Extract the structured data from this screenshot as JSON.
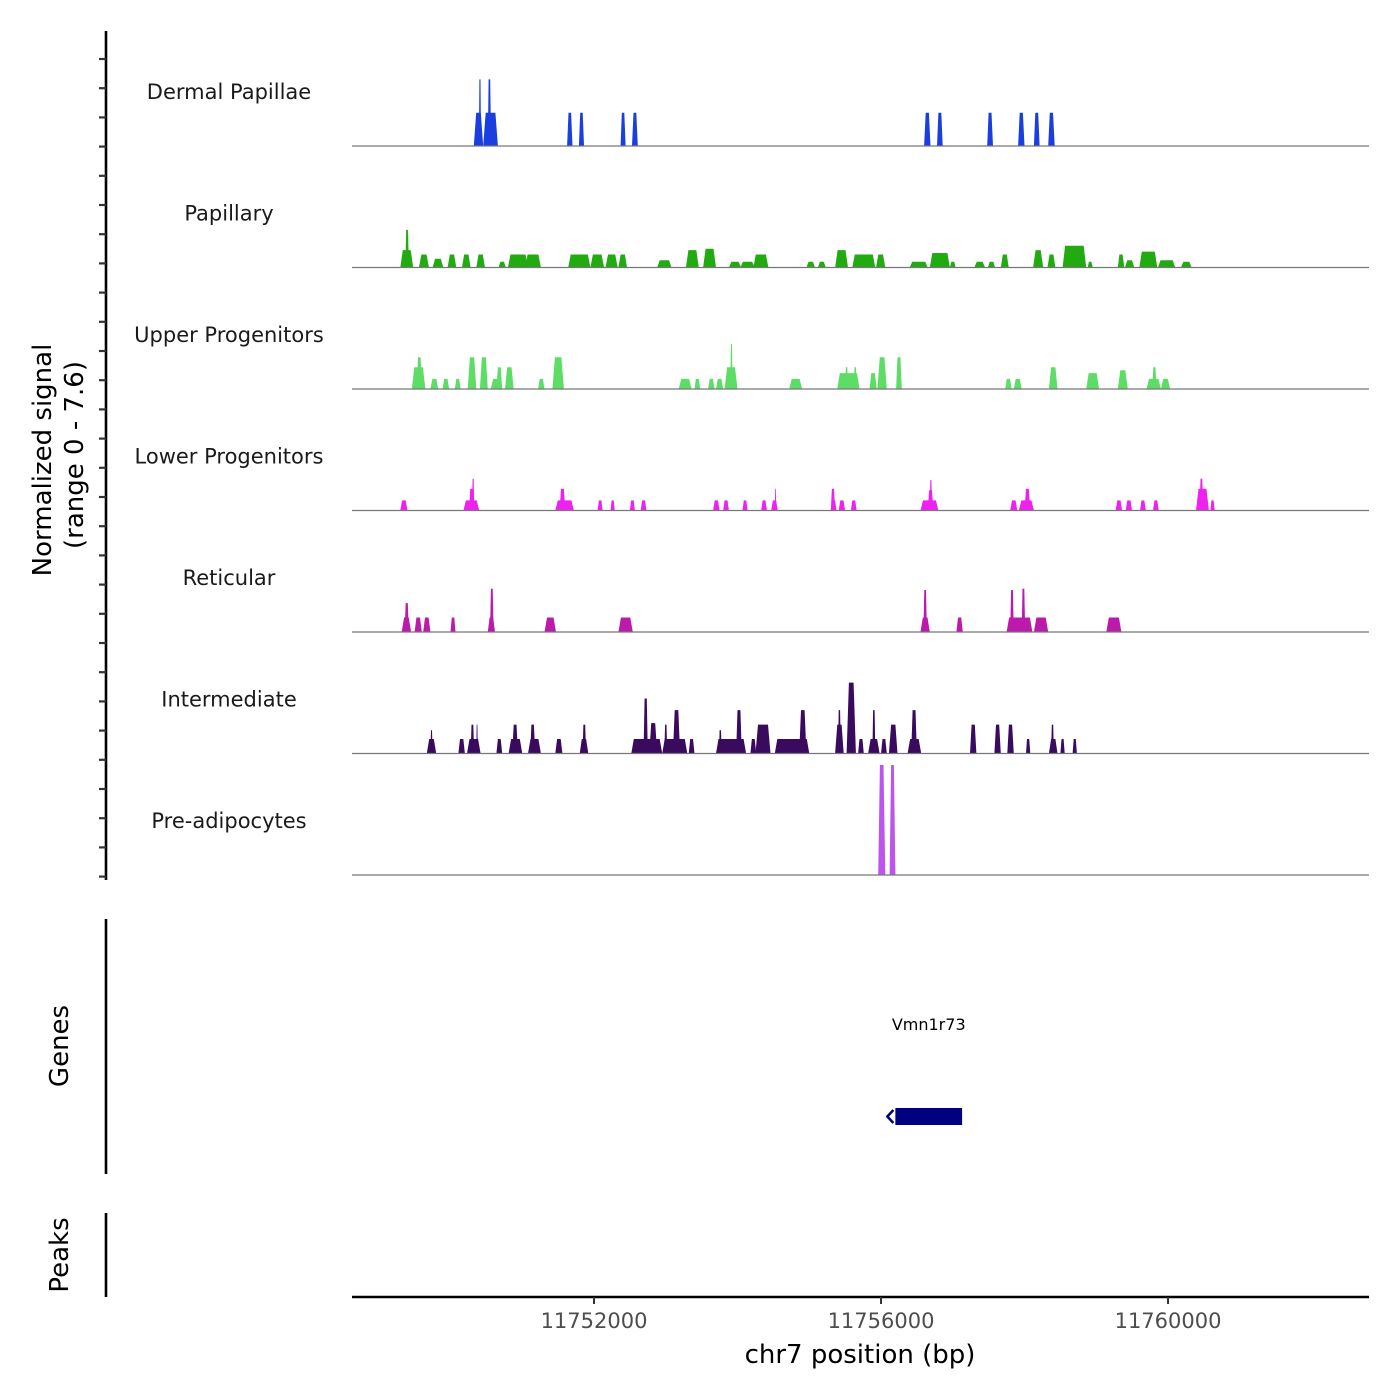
{
  "chart_data": {
    "type": "area",
    "title": "",
    "ylabel": "Normalized signal\n(range 0 - 7.6)",
    "ylabel_lines": [
      "Normalized signal",
      "(range 0 - 7.6)"
    ],
    "ylim": [
      0,
      7.6
    ],
    "xlabel": "chr7 position (bp)",
    "xlim": [
      11748627,
      11762801
    ],
    "x_ticks": [
      11752000,
      11756000,
      11760000
    ],
    "x_tick_labels": [
      "11752000",
      "11756000",
      "11760000"
    ],
    "grid": false,
    "tracks": [
      {
        "name": "Dermal Papillae",
        "color": "#1a3ee0",
        "segments": [
          [
            11750325,
            11750455,
            2.3
          ],
          [
            11750395,
            11750425,
            4.6
          ],
          [
            11750520,
            11750565,
            4.6
          ],
          [
            11750455,
            11750660,
            2.3
          ],
          [
            11751625,
            11751700,
            2.3
          ],
          [
            11751790,
            11751860,
            2.3
          ],
          [
            11752370,
            11752440,
            2.3
          ],
          [
            11752530,
            11752610,
            2.3
          ],
          [
            11756600,
            11756690,
            2.3
          ],
          [
            11756780,
            11756860,
            2.3
          ],
          [
            11757480,
            11757560,
            2.3
          ],
          [
            11757910,
            11758000,
            2.3
          ],
          [
            11758130,
            11758210,
            2.3
          ],
          [
            11758330,
            11758420,
            2.3
          ]
        ]
      },
      {
        "name": "Papillary",
        "color": "#22aa11",
        "segments": [
          [
            11749300,
            11749480,
            1.2
          ],
          [
            11749370,
            11749420,
            2.6
          ],
          [
            11749560,
            11749700,
            0.9
          ],
          [
            11749750,
            11749900,
            0.6
          ],
          [
            11749960,
            11750080,
            0.9
          ],
          [
            11750160,
            11750280,
            0.9
          ],
          [
            11750360,
            11750480,
            0.9
          ],
          [
            11750670,
            11750770,
            0.4
          ],
          [
            11750800,
            11751080,
            0.9
          ],
          [
            11751040,
            11751260,
            0.9
          ],
          [
            11751640,
            11751950,
            0.9
          ],
          [
            11751950,
            11752140,
            0.9
          ],
          [
            11752160,
            11752330,
            0.9
          ],
          [
            11752340,
            11752460,
            0.9
          ],
          [
            11752880,
            11753080,
            0.5
          ],
          [
            11753280,
            11753460,
            1.2
          ],
          [
            11753520,
            11753700,
            1.3
          ],
          [
            11753880,
            11754050,
            0.4
          ],
          [
            11754040,
            11754240,
            0.4
          ],
          [
            11754220,
            11754430,
            0.9
          ],
          [
            11754960,
            11755080,
            0.4
          ],
          [
            11755120,
            11755230,
            0.4
          ],
          [
            11755360,
            11755540,
            1.2
          ],
          [
            11755600,
            11755920,
            0.9
          ],
          [
            11755930,
            11756060,
            0.9
          ],
          [
            11756400,
            11756650,
            0.4
          ],
          [
            11756680,
            11756960,
            1.0
          ],
          [
            11756960,
            11757040,
            0.4
          ],
          [
            11757300,
            11757450,
            0.4
          ],
          [
            11757490,
            11757590,
            0.4
          ],
          [
            11757670,
            11757780,
            0.9
          ],
          [
            11758120,
            11758260,
            1.2
          ],
          [
            11758320,
            11758430,
            0.9
          ],
          [
            11758530,
            11758860,
            1.5
          ],
          [
            11758880,
            11758950,
            0.4
          ],
          [
            11759300,
            11759390,
            0.9
          ],
          [
            11759400,
            11759530,
            0.5
          ],
          [
            11759600,
            11759850,
            1.1
          ],
          [
            11759860,
            11760100,
            0.5
          ],
          [
            11760180,
            11760330,
            0.4
          ]
        ]
      },
      {
        "name": "Upper Progenitors",
        "color": "#5ddd66",
        "segments": [
          [
            11749460,
            11749650,
            1.5
          ],
          [
            11749530,
            11749600,
            2.2
          ],
          [
            11749720,
            11749830,
            0.7
          ],
          [
            11749890,
            11749980,
            0.7
          ],
          [
            11750060,
            11750140,
            0.7
          ],
          [
            11750240,
            11750360,
            2.2
          ],
          [
            11750410,
            11750520,
            2.2
          ],
          [
            11750560,
            11750700,
            0.7
          ],
          [
            11750640,
            11750720,
            1.5
          ],
          [
            11750760,
            11750880,
            1.5
          ],
          [
            11751220,
            11751310,
            0.7
          ],
          [
            11751420,
            11751580,
            2.2
          ],
          [
            11753180,
            11753360,
            0.7
          ],
          [
            11753400,
            11753480,
            0.7
          ],
          [
            11753590,
            11753680,
            0.7
          ],
          [
            11753700,
            11753800,
            0.7
          ],
          [
            11753820,
            11754000,
            1.5
          ],
          [
            11753900,
            11753930,
            3.1
          ],
          [
            11754720,
            11754900,
            0.7
          ],
          [
            11755390,
            11755700,
            1.1
          ],
          [
            11755500,
            11755540,
            1.5
          ],
          [
            11755620,
            11755660,
            1.5
          ],
          [
            11755840,
            11755940,
            1.1
          ],
          [
            11755950,
            11756080,
            2.2
          ],
          [
            11756210,
            11756290,
            2.2
          ],
          [
            11757730,
            11757820,
            0.7
          ],
          [
            11757850,
            11757960,
            0.7
          ],
          [
            11758340,
            11758460,
            1.5
          ],
          [
            11758860,
            11759040,
            1.1
          ],
          [
            11759300,
            11759440,
            1.3
          ],
          [
            11759700,
            11759900,
            0.7
          ],
          [
            11759780,
            11759840,
            1.5
          ],
          [
            11759900,
            11760030,
            0.7
          ]
        ]
      },
      {
        "name": "Lower Progenitors",
        "color": "#ee22ee",
        "segments": [
          [
            11749300,
            11749400,
            0.7
          ],
          [
            11750180,
            11750400,
            0.7
          ],
          [
            11750260,
            11750320,
            1.5
          ],
          [
            11750300,
            11750330,
            2.2
          ],
          [
            11751460,
            11751720,
            0.7
          ],
          [
            11751520,
            11751600,
            1.5
          ],
          [
            11752050,
            11752120,
            0.7
          ],
          [
            11752230,
            11752290,
            0.7
          ],
          [
            11752500,
            11752570,
            0.7
          ],
          [
            11752650,
            11752730,
            0.7
          ],
          [
            11753660,
            11753750,
            0.7
          ],
          [
            11753800,
            11753880,
            0.7
          ],
          [
            11754070,
            11754140,
            0.7
          ],
          [
            11754330,
            11754410,
            0.7
          ],
          [
            11754470,
            11754560,
            0.7
          ],
          [
            11754520,
            11754540,
            1.5
          ],
          [
            11755300,
            11755380,
            0.7
          ],
          [
            11755300,
            11755360,
            1.5
          ],
          [
            11755410,
            11755500,
            0.7
          ],
          [
            11755580,
            11755660,
            0.7
          ],
          [
            11756550,
            11756800,
            0.7
          ],
          [
            11756650,
            11756730,
            1.4
          ],
          [
            11756680,
            11756710,
            2.1
          ],
          [
            11757800,
            11757900,
            0.7
          ],
          [
            11757920,
            11758130,
            0.7
          ],
          [
            11758000,
            11758080,
            1.5
          ],
          [
            11759270,
            11759360,
            0.7
          ],
          [
            11759410,
            11759500,
            0.7
          ],
          [
            11759610,
            11759690,
            0.7
          ],
          [
            11759790,
            11759870,
            0.7
          ],
          [
            11760390,
            11760570,
            1.5
          ],
          [
            11760440,
            11760490,
            2.2
          ],
          [
            11760590,
            11760650,
            0.7
          ]
        ]
      },
      {
        "name": "Reticular",
        "color": "#bb1aaa",
        "segments": [
          [
            11749320,
            11749450,
            1.0
          ],
          [
            11749360,
            11749420,
            2.0
          ],
          [
            11749500,
            11749600,
            1.0
          ],
          [
            11749620,
            11749720,
            1.0
          ],
          [
            11750000,
            11750070,
            1.0
          ],
          [
            11750520,
            11750620,
            1.0
          ],
          [
            11750550,
            11750600,
            3.0
          ],
          [
            11751310,
            11751470,
            1.0
          ],
          [
            11752340,
            11752540,
            1.0
          ],
          [
            11756550,
            11756680,
            1.0
          ],
          [
            11756590,
            11756640,
            2.9
          ],
          [
            11757050,
            11757140,
            1.0
          ],
          [
            11757750,
            11758110,
            1.0
          ],
          [
            11757800,
            11757850,
            2.9
          ],
          [
            11757960,
            11758010,
            3.0
          ],
          [
            11758130,
            11758330,
            1.0
          ],
          [
            11759140,
            11759350,
            1.0
          ]
        ]
      },
      {
        "name": "Intermediate",
        "color": "#3a0a5e",
        "segments": [
          [
            11749670,
            11749800,
            1.0
          ],
          [
            11749720,
            11749750,
            1.6
          ],
          [
            11750110,
            11750200,
            1.0
          ],
          [
            11750230,
            11750420,
            1.0
          ],
          [
            11750280,
            11750330,
            2.0
          ],
          [
            11750360,
            11750380,
            2.0
          ],
          [
            11750640,
            11750720,
            1.0
          ],
          [
            11750810,
            11751000,
            1.0
          ],
          [
            11750860,
            11750940,
            2.0
          ],
          [
            11751080,
            11751260,
            1.0
          ],
          [
            11751110,
            11751180,
            2.0
          ],
          [
            11751460,
            11751560,
            1.0
          ],
          [
            11751800,
            11751920,
            1.0
          ],
          [
            11751840,
            11751890,
            2.0
          ],
          [
            11752520,
            11752950,
            1.0
          ],
          [
            11752690,
            11752750,
            3.8
          ],
          [
            11752770,
            11752880,
            2.1
          ],
          [
            11752950,
            11753300,
            1.0
          ],
          [
            11752980,
            11753020,
            2.0
          ],
          [
            11753100,
            11753200,
            3.0
          ],
          [
            11753320,
            11753400,
            1.0
          ],
          [
            11753700,
            11754120,
            1.0
          ],
          [
            11753740,
            11753780,
            1.6
          ],
          [
            11753980,
            11754060,
            3.0
          ],
          [
            11754180,
            11754260,
            1.0
          ],
          [
            11754250,
            11754460,
            2.0
          ],
          [
            11754520,
            11755000,
            1.0
          ],
          [
            11754860,
            11754960,
            3.0
          ],
          [
            11755360,
            11755480,
            2.0
          ],
          [
            11755400,
            11755440,
            3.0
          ],
          [
            11755520,
            11755650,
            4.9
          ],
          [
            11755580,
            11755620,
            3.9
          ],
          [
            11755680,
            11755760,
            1.0
          ],
          [
            11755820,
            11755980,
            1.0
          ],
          [
            11755880,
            11755920,
            3.0
          ],
          [
            11756000,
            11756080,
            1.0
          ],
          [
            11756110,
            11756230,
            2.0
          ],
          [
            11756370,
            11756560,
            1.0
          ],
          [
            11756420,
            11756500,
            3.0
          ],
          [
            11757240,
            11757330,
            2.0
          ],
          [
            11757580,
            11757670,
            2.0
          ],
          [
            11757760,
            11757850,
            2.0
          ],
          [
            11758020,
            11758080,
            1.0
          ],
          [
            11758340,
            11758460,
            1.0
          ],
          [
            11758370,
            11758410,
            2.0
          ],
          [
            11758500,
            11758560,
            1.0
          ],
          [
            11758670,
            11758730,
            1.0
          ]
        ]
      },
      {
        "name": "Pre-adipocytes",
        "color": "#bb55ee",
        "segments": [
          [
            11755960,
            11756060,
            7.6
          ],
          [
            11756120,
            11756200,
            7.6
          ]
        ]
      }
    ],
    "genes_track": {
      "label": "Genes",
      "genes": [
        {
          "name": "Vmn1r73",
          "start": 11756200,
          "end": 11757130,
          "strand": "-",
          "color": "#000080"
        }
      ]
    },
    "peaks_track": {
      "label": "Peaks",
      "peaks": []
    }
  }
}
